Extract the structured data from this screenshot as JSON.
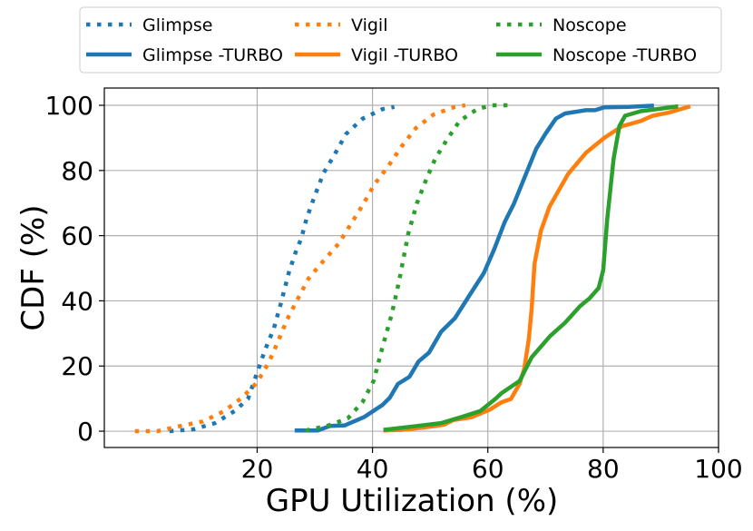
{
  "chart_data": {
    "type": "line",
    "title": "",
    "xlabel": "GPU Utilization (%)",
    "ylabel": "CDF (%)",
    "xlim": [
      -6.5,
      100
    ],
    "ylim": [
      -5,
      105.3
    ],
    "xticks": [
      20,
      40,
      60,
      80,
      100
    ],
    "yticks": [
      0,
      20,
      40,
      60,
      80,
      100
    ],
    "grid": true,
    "legend_placement": "top, above plot, 3 columns",
    "series": [
      {
        "name": "Glimpse",
        "color": "#1f77b4",
        "style": "dotted",
        "x": [
          4.8,
          9.0,
          12.7,
          16.1,
          18.4,
          20,
          21.3,
          22.9,
          24,
          25.5,
          26.8,
          27.6,
          28.6,
          30,
          31.5,
          33.4,
          35.4,
          38.3,
          41.7,
          43.8
        ],
        "y": [
          0,
          0.6,
          2.5,
          6.2,
          9.9,
          18,
          24.6,
          31.6,
          38.5,
          48.7,
          55.6,
          58.9,
          65.4,
          72.3,
          79.2,
          84.8,
          91.2,
          95.9,
          98.8,
          99.5
        ]
      },
      {
        "name": "Glimpse -TURBO",
        "color": "#1f77b4",
        "style": "solid",
        "x": [
          26.5,
          30.5,
          32.6,
          35.2,
          38.6,
          41.7,
          43,
          44.4,
          46.4,
          48,
          49.8,
          51.9,
          54.3,
          56.6,
          59.3,
          61.1,
          62.9,
          64.5,
          66.6,
          68.4,
          70,
          71.8,
          73.4,
          77,
          78.6,
          80.2,
          84.4,
          88.8
        ],
        "y": [
          0.2,
          0.2,
          1.6,
          1.8,
          4.4,
          8,
          10.3,
          14.5,
          16.7,
          21.4,
          24.1,
          30.5,
          34.7,
          41.1,
          48.5,
          55.8,
          64.1,
          69.7,
          78.9,
          86.7,
          91.3,
          95.9,
          97.5,
          98.5,
          98.5,
          99.4,
          99.5,
          99.9
        ]
      },
      {
        "name": "Vigil",
        "color": "#ff7f0e",
        "style": "dotted",
        "x": [
          -1.2,
          2.7,
          6.7,
          10.6,
          14.3,
          17.4,
          20,
          22.1,
          23.7,
          25.2,
          27.1,
          28.9,
          31.5,
          34.1,
          36.2,
          38.3,
          40.4,
          42.8,
          45.1,
          47.5,
          50.6,
          54.3,
          56.1
        ],
        "y": [
          0,
          0,
          1.6,
          3,
          6.2,
          10.3,
          15,
          21.4,
          27.9,
          34.3,
          40.8,
          46.8,
          52.3,
          57.5,
          63.4,
          69.4,
          75.9,
          81.5,
          87.5,
          93,
          97.2,
          99.5,
          100
        ]
      },
      {
        "name": "Vigil -TURBO",
        "color": "#ff7f0e",
        "style": "solid",
        "x": [
          41.9,
          45,
          48.7,
          52.4,
          54,
          57.2,
          60.3,
          62.4,
          64,
          65.5,
          66.3,
          67.1,
          67.6,
          68.1,
          69.2,
          70.7,
          73.9,
          77,
          80.2,
          83.3,
          86.5,
          88.6,
          91.2,
          95.1
        ],
        "y": [
          0.2,
          0.4,
          1.1,
          2,
          3.4,
          4.3,
          6.6,
          8.9,
          9.9,
          14.5,
          19.1,
          28.3,
          37.5,
          51.4,
          61.5,
          68.9,
          78.9,
          85.4,
          90,
          93.6,
          95.2,
          96.8,
          97.7,
          99.7
        ]
      },
      {
        "name": "Noscope",
        "color": "#2ca02c",
        "style": "dotted",
        "x": [
          28.4,
          32.1,
          35.7,
          38.3,
          40.2,
          41.7,
          43.3,
          44.6,
          46.2,
          47.7,
          49.3,
          50.9,
          53,
          55.1,
          58.2,
          60.8,
          64
        ],
        "y": [
          0.2,
          1.6,
          3.9,
          9,
          15.5,
          25.6,
          35.7,
          45.9,
          60.6,
          69.9,
          77.2,
          83.7,
          89.7,
          95.2,
          98.9,
          100,
          100
        ]
      },
      {
        "name": "Noscope -TURBO",
        "color": "#2ca02c",
        "style": "solid",
        "x": [
          41.9,
          47.7,
          51.9,
          55.5,
          58.7,
          61.3,
          62.4,
          65.5,
          67.6,
          70.8,
          73.4,
          76,
          77.6,
          79.2,
          80,
          80.7,
          81.8,
          82.8,
          83.8,
          86.5,
          89.6,
          93
        ],
        "y": [
          0.4,
          1.6,
          2.5,
          4.4,
          6.2,
          9.9,
          11.7,
          15.4,
          22.7,
          29.2,
          33.3,
          38.4,
          40.7,
          43.9,
          49.4,
          65,
          83.5,
          93.6,
          96.8,
          98.2,
          98.9,
          99.7
        ]
      }
    ]
  }
}
